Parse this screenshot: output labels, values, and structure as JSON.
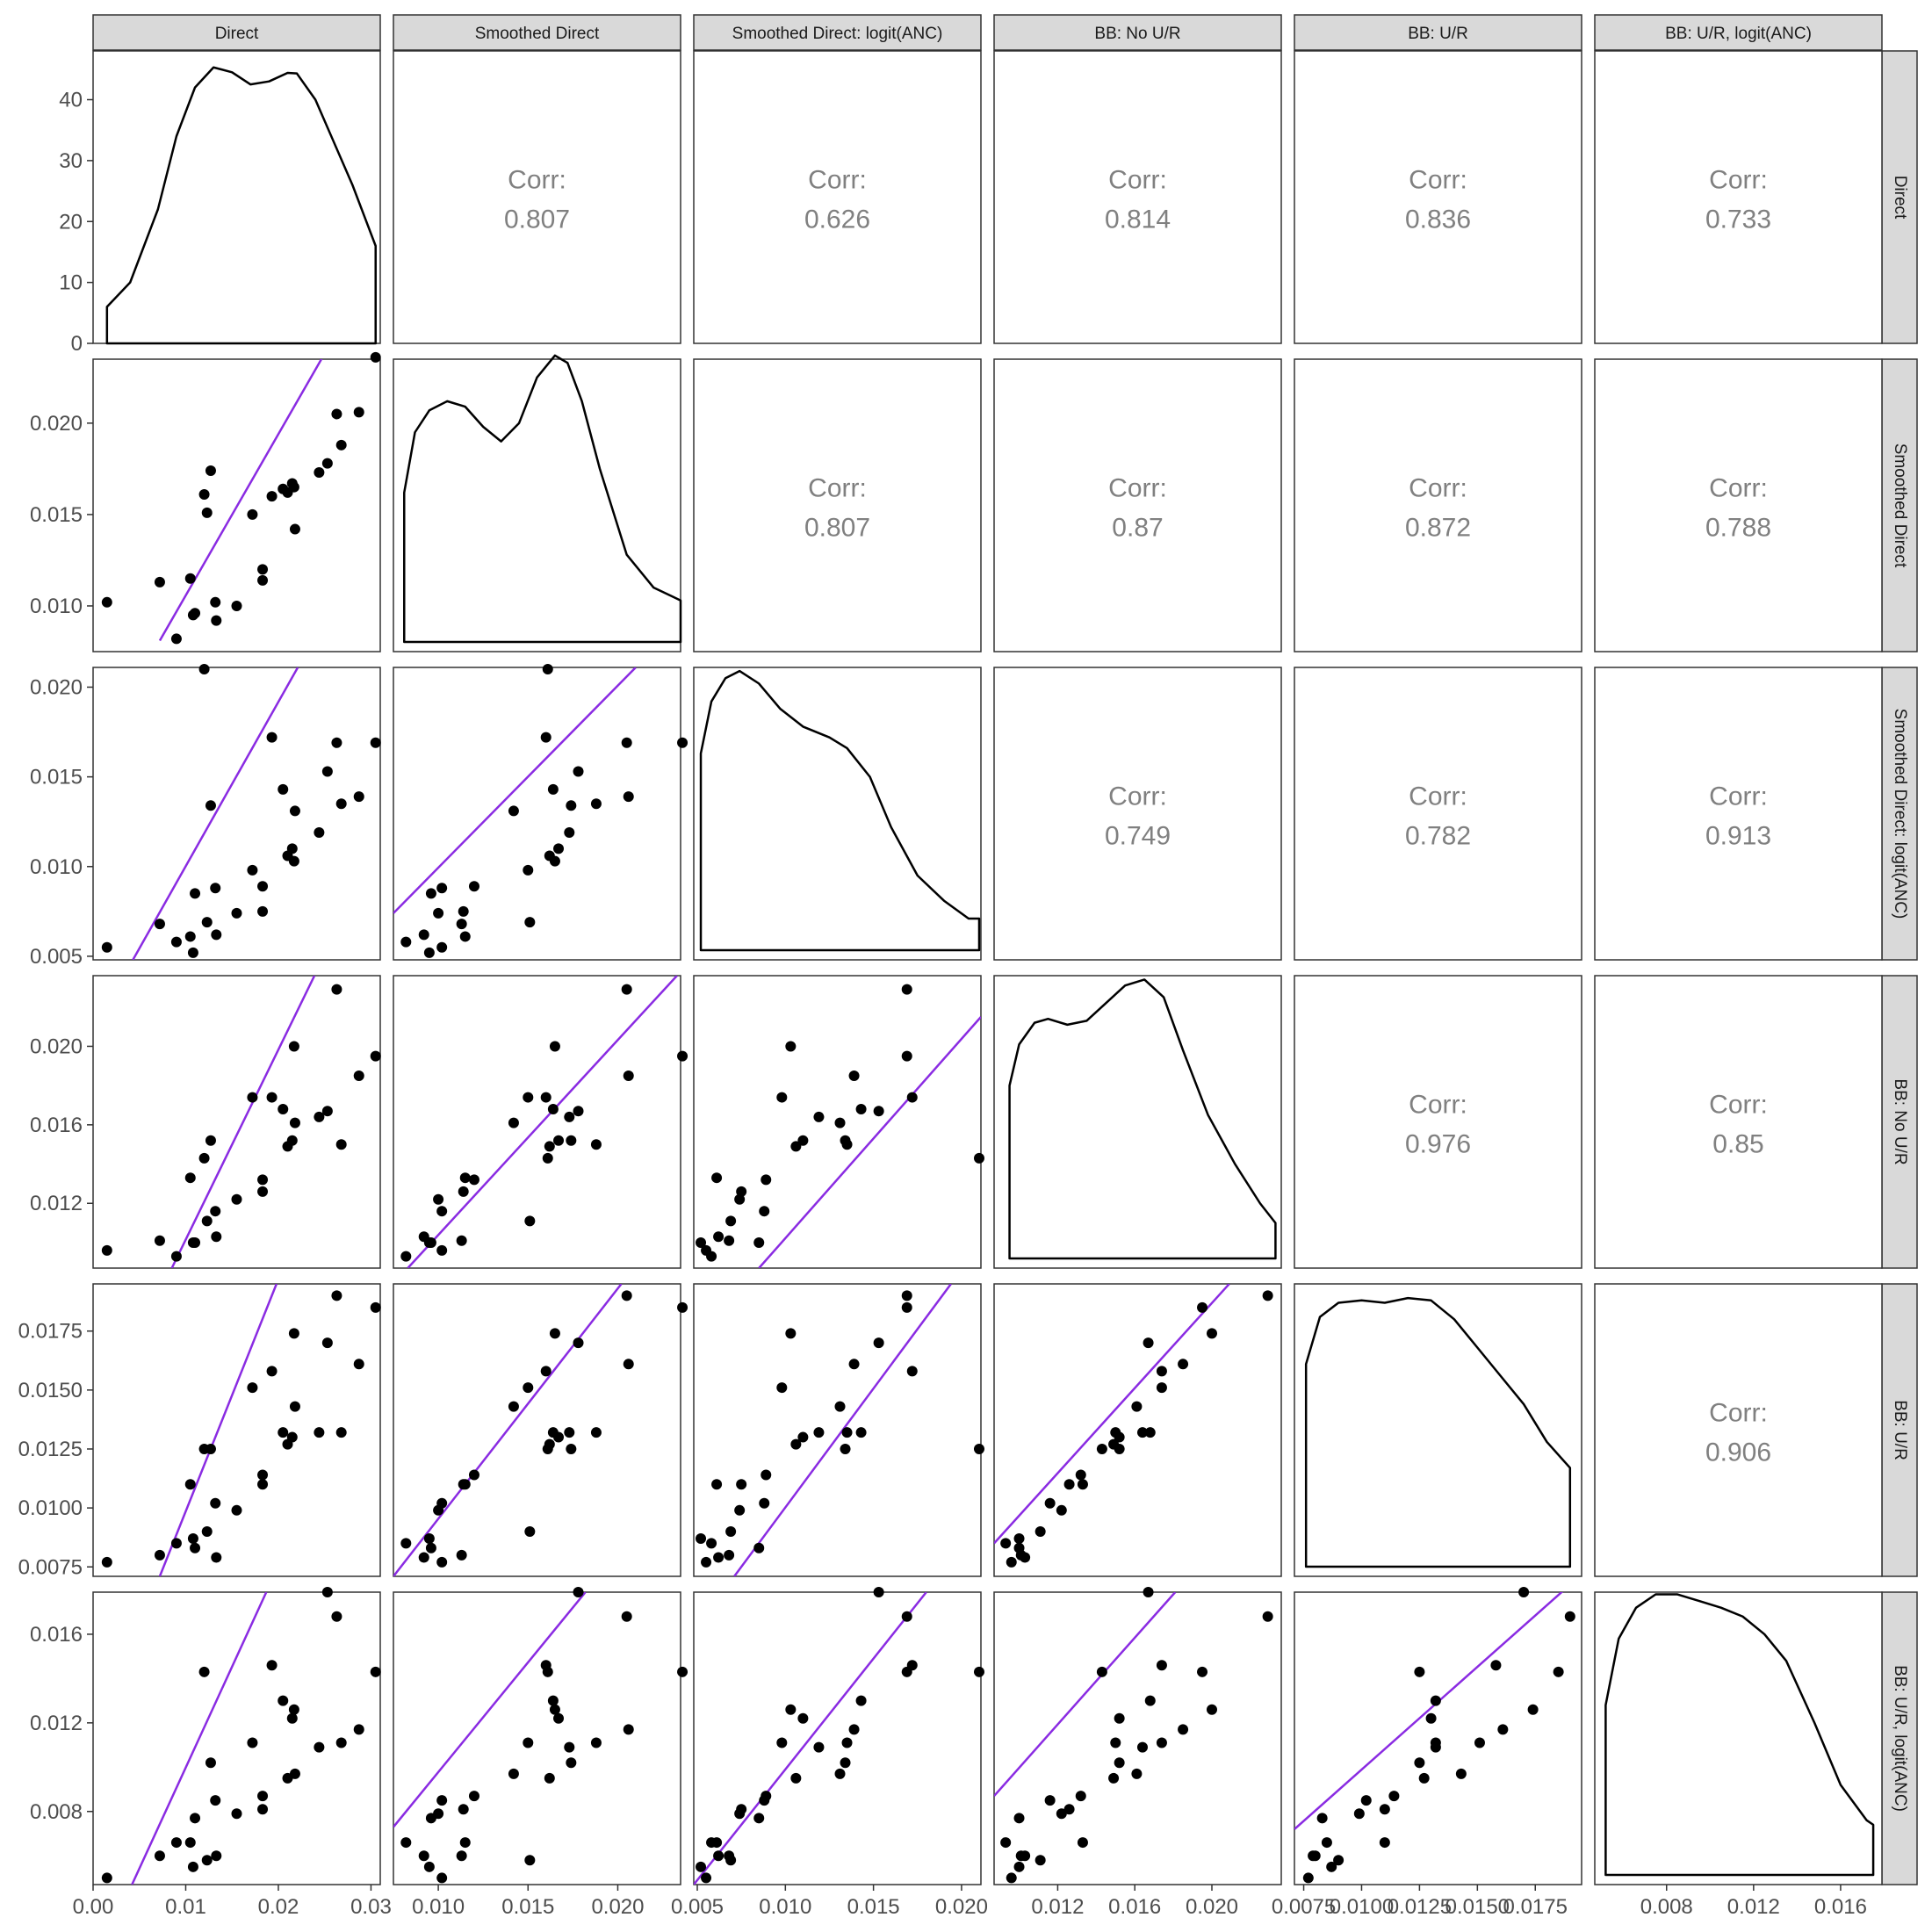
{
  "chart_data": {
    "type": "scatter",
    "variables": [
      "Direct",
      "Smoothed Direct",
      "Smoothed Direct: logit(ANC)",
      "BB: No U/R",
      "BB: U/R",
      "BB: U/R, logit(ANC)"
    ],
    "corr_label": "Corr:",
    "correlations": [
      {
        "row": 0,
        "col": 1,
        "value": "0.807"
      },
      {
        "row": 0,
        "col": 2,
        "value": "0.626"
      },
      {
        "row": 0,
        "col": 3,
        "value": "0.814"
      },
      {
        "row": 0,
        "col": 4,
        "value": "0.836"
      },
      {
        "row": 0,
        "col": 5,
        "value": "0.733"
      },
      {
        "row": 1,
        "col": 2,
        "value": "0.807"
      },
      {
        "row": 1,
        "col": 3,
        "value": "0.87"
      },
      {
        "row": 1,
        "col": 4,
        "value": "0.872"
      },
      {
        "row": 1,
        "col": 5,
        "value": "0.788"
      },
      {
        "row": 2,
        "col": 3,
        "value": "0.749"
      },
      {
        "row": 2,
        "col": 4,
        "value": "0.782"
      },
      {
        "row": 2,
        "col": 5,
        "value": "0.913"
      },
      {
        "row": 3,
        "col": 4,
        "value": "0.976"
      },
      {
        "row": 3,
        "col": 5,
        "value": "0.85"
      },
      {
        "row": 4,
        "col": 5,
        "value": "0.906"
      }
    ],
    "ranges": [
      [
        0.0,
        0.031
      ],
      [
        0.0075,
        0.0235
      ],
      [
        0.0048,
        0.0211
      ],
      [
        0.0087,
        0.0236
      ],
      [
        0.0071,
        0.0195
      ],
      [
        0.0047,
        0.0179
      ]
    ],
    "x_ticks": [
      [
        "0.00",
        "0.01",
        "0.02",
        "0.03"
      ],
      [
        "0.010",
        "0.015",
        "0.020"
      ],
      [
        "0.005",
        "0.010",
        "0.015",
        "0.020"
      ],
      [
        "0.012",
        "0.016",
        "0.020"
      ],
      [
        "0.0075",
        "0.0100",
        "0.0125",
        "0.0150",
        "0.0175"
      ],
      [
        "0.008",
        "0.012",
        "0.016"
      ]
    ],
    "y_ticks": [
      [
        "0",
        "10",
        "20",
        "30",
        "40"
      ],
      [
        "0.010",
        "0.015",
        "0.020"
      ],
      [
        "0.005",
        "0.010",
        "0.015",
        "0.020"
      ],
      [
        "0.012",
        "0.016",
        "0.020"
      ],
      [
        "0.0075",
        "0.0100",
        "0.0125",
        "0.0150",
        "0.0175"
      ],
      [
        "0.008",
        "0.012",
        "0.016"
      ]
    ],
    "density_y_range": [
      0,
      48
    ],
    "density_curves": [
      [
        [
          0.0015,
          6
        ],
        [
          0.004,
          10
        ],
        [
          0.007,
          22
        ],
        [
          0.009,
          34
        ],
        [
          0.011,
          42
        ],
        [
          0.013,
          45.3
        ],
        [
          0.015,
          44.5
        ],
        [
          0.017,
          42.5
        ],
        [
          0.019,
          43
        ],
        [
          0.021,
          44.4
        ],
        [
          0.022,
          44.3
        ],
        [
          0.024,
          40
        ],
        [
          0.026,
          33
        ],
        [
          0.028,
          26
        ],
        [
          0.0305,
          16
        ]
      ],
      [
        [
          0.0081,
          0.0162
        ],
        [
          0.0087,
          0.0195
        ],
        [
          0.0095,
          0.0207
        ],
        [
          0.0105,
          0.0212
        ],
        [
          0.0115,
          0.0209
        ],
        [
          0.0125,
          0.0198
        ],
        [
          0.0135,
          0.019
        ],
        [
          0.0145,
          0.02
        ],
        [
          0.0155,
          0.0225
        ],
        [
          0.0165,
          0.0237
        ],
        [
          0.0172,
          0.0233
        ],
        [
          0.018,
          0.0212
        ],
        [
          0.019,
          0.0175
        ],
        [
          0.0205,
          0.0128
        ],
        [
          0.022,
          0.011
        ],
        [
          0.0235,
          0.0103
        ]
      ],
      [
        [
          0.0052,
          0.0163
        ],
        [
          0.0058,
          0.0192
        ],
        [
          0.0066,
          0.0205
        ],
        [
          0.0074,
          0.0209
        ],
        [
          0.0085,
          0.0202
        ],
        [
          0.0097,
          0.0188
        ],
        [
          0.011,
          0.0178
        ],
        [
          0.0125,
          0.0172
        ],
        [
          0.0135,
          0.0166
        ],
        [
          0.0148,
          0.015
        ],
        [
          0.016,
          0.0122
        ],
        [
          0.0175,
          0.0095
        ],
        [
          0.019,
          0.0081
        ],
        [
          0.0204,
          0.0071
        ],
        [
          0.021,
          0.0071
        ]
      ],
      [
        [
          0.0095,
          0.018
        ],
        [
          0.01,
          0.0201
        ],
        [
          0.0108,
          0.0212
        ],
        [
          0.0115,
          0.0214
        ],
        [
          0.0125,
          0.0211
        ],
        [
          0.0135,
          0.0213
        ],
        [
          0.0145,
          0.0222
        ],
        [
          0.0155,
          0.0231
        ],
        [
          0.0165,
          0.0234
        ],
        [
          0.0175,
          0.0225
        ],
        [
          0.0185,
          0.0198
        ],
        [
          0.0198,
          0.0165
        ],
        [
          0.0212,
          0.014
        ],
        [
          0.0225,
          0.012
        ],
        [
          0.0233,
          0.011
        ]
      ],
      [
        [
          0.0076,
          0.0161
        ],
        [
          0.0082,
          0.0181
        ],
        [
          0.009,
          0.0187
        ],
        [
          0.01,
          0.0188
        ],
        [
          0.011,
          0.0187
        ],
        [
          0.012,
          0.0189
        ],
        [
          0.013,
          0.0188
        ],
        [
          0.014,
          0.018
        ],
        [
          0.015,
          0.0168
        ],
        [
          0.016,
          0.0156
        ],
        [
          0.017,
          0.0144
        ],
        [
          0.018,
          0.0128
        ],
        [
          0.019,
          0.0117
        ]
      ],
      [
        [
          0.0052,
          0.0128
        ],
        [
          0.0058,
          0.0158
        ],
        [
          0.0066,
          0.0172
        ],
        [
          0.0075,
          0.0178
        ],
        [
          0.0085,
          0.0178
        ],
        [
          0.0095,
          0.0175
        ],
        [
          0.0105,
          0.0172
        ],
        [
          0.0115,
          0.0168
        ],
        [
          0.0125,
          0.016
        ],
        [
          0.0135,
          0.0148
        ],
        [
          0.0148,
          0.012
        ],
        [
          0.016,
          0.0092
        ],
        [
          0.0172,
          0.0076
        ],
        [
          0.0175,
          0.0074
        ]
      ]
    ],
    "points": [
      [
        0.0015,
        0.0102,
        0.0055,
        0.0096,
        0.0077,
        0.005
      ],
      [
        0.0072,
        0.0113,
        0.0068,
        0.0101,
        0.008,
        0.006
      ],
      [
        0.009,
        0.0082,
        0.0058,
        0.0093,
        0.0085,
        0.0066
      ],
      [
        0.0105,
        0.0115,
        0.0061,
        0.0133,
        0.011,
        0.0066
      ],
      [
        0.0108,
        0.0095,
        0.0052,
        0.01,
        0.0087,
        0.0055
      ],
      [
        0.011,
        0.0096,
        0.0085,
        0.01,
        0.0083,
        0.0077
      ],
      [
        0.012,
        0.0161,
        0.021,
        0.0143,
        0.0125,
        0.0143
      ],
      [
        0.0123,
        0.0151,
        0.0069,
        0.0111,
        0.009,
        0.0058
      ],
      [
        0.0127,
        0.0174,
        0.0134,
        0.0152,
        0.0125,
        0.0102
      ],
      [
        0.0132,
        0.0102,
        0.0088,
        0.0116,
        0.0102,
        0.0085
      ],
      [
        0.0133,
        0.0092,
        0.0062,
        0.0103,
        0.0079,
        0.006
      ],
      [
        0.0155,
        0.01,
        0.0074,
        0.0122,
        0.0099,
        0.0079
      ],
      [
        0.0172,
        0.015,
        0.0098,
        0.0174,
        0.0151,
        0.0111
      ],
      [
        0.0183,
        0.0114,
        0.0075,
        0.0126,
        0.011,
        0.0081
      ],
      [
        0.0183,
        0.012,
        0.0089,
        0.0132,
        0.0114,
        0.0087
      ],
      [
        0.0193,
        0.016,
        0.0172,
        0.0174,
        0.0158,
        0.0146
      ],
      [
        0.0205,
        0.0164,
        0.0143,
        0.0168,
        0.0132,
        0.013
      ],
      [
        0.021,
        0.0162,
        0.0106,
        0.0149,
        0.0127,
        0.0095
      ],
      [
        0.0215,
        0.0167,
        0.011,
        0.0152,
        0.013,
        0.0122
      ],
      [
        0.0217,
        0.0165,
        0.0103,
        0.02,
        0.0174,
        0.0126
      ],
      [
        0.0218,
        0.0142,
        0.0131,
        0.0161,
        0.0143,
        0.0097
      ],
      [
        0.0244,
        0.0173,
        0.0119,
        0.0164,
        0.0132,
        0.0109
      ],
      [
        0.0253,
        0.0178,
        0.0153,
        0.0167,
        0.017,
        0.0179
      ],
      [
        0.0263,
        0.0205,
        0.0169,
        0.0229,
        0.019,
        0.0168
      ],
      [
        0.0268,
        0.0188,
        0.0135,
        0.015,
        0.0132,
        0.0111
      ],
      [
        0.0287,
        0.0206,
        0.0139,
        0.0185,
        0.0161,
        0.0117
      ],
      [
        0.0305,
        0.0236,
        0.0169,
        0.0195,
        0.0185,
        0.0143
      ]
    ],
    "fit_lines": [
      {
        "row": 1,
        "col": 0,
        "x": [
          0.0072,
          0.0251
        ],
        "y": [
          0.0081,
          0.0239
        ]
      },
      {
        "row": 2,
        "col": 0,
        "x": [
          0.0043,
          0.0221
        ],
        "y": [
          0.0048,
          0.0211
        ]
      },
      {
        "row": 3,
        "col": 0,
        "x": [
          0.0085,
          0.0239
        ],
        "y": [
          0.0087,
          0.0236
        ]
      },
      {
        "row": 4,
        "col": 0,
        "x": [
          0.0072,
          0.0198
        ],
        "y": [
          0.0071,
          0.0195
        ]
      },
      {
        "row": 5,
        "col": 0,
        "x": [
          0.0042,
          0.0187
        ],
        "y": [
          0.0047,
          0.0179
        ]
      },
      {
        "row": 2,
        "col": 1,
        "x": [
          0.0075,
          0.021
        ],
        "y": [
          0.0074,
          0.0211
        ]
      },
      {
        "row": 3,
        "col": 1,
        "x": [
          0.0083,
          0.0233
        ],
        "y": [
          0.0087,
          0.0236
        ]
      },
      {
        "row": 4,
        "col": 1,
        "x": [
          0.0075,
          0.0202
        ],
        "y": [
          0.0071,
          0.0195
        ]
      },
      {
        "row": 5,
        "col": 1,
        "x": [
          0.0075,
          0.0182
        ],
        "y": [
          0.0073,
          0.0179
        ]
      },
      {
        "row": 3,
        "col": 2,
        "x": [
          0.0085,
          0.0211
        ],
        "y": [
          0.0087,
          0.0215
        ]
      },
      {
        "row": 4,
        "col": 2,
        "x": [
          0.0071,
          0.0194
        ],
        "y": [
          0.0071,
          0.0195
        ]
      },
      {
        "row": 5,
        "col": 2,
        "x": [
          0.0048,
          0.018
        ],
        "y": [
          0.0047,
          0.0179
        ]
      },
      {
        "row": 4,
        "col": 3,
        "x": [
          0.0087,
          0.0209
        ],
        "y": [
          0.0085,
          0.0195
        ]
      },
      {
        "row": 5,
        "col": 3,
        "x": [
          0.0087,
          0.0181
        ],
        "y": [
          0.0087,
          0.0179
        ]
      },
      {
        "row": 5,
        "col": 4,
        "x": [
          0.0071,
          0.0195
        ],
        "y": [
          0.0072,
          0.0187
        ]
      }
    ]
  },
  "colors": {
    "fit_line": "#8a2be2",
    "points": "#000000",
    "strip_fill": "#d9d9d9",
    "panel_border": "#333333",
    "corr_text": "#808080"
  }
}
